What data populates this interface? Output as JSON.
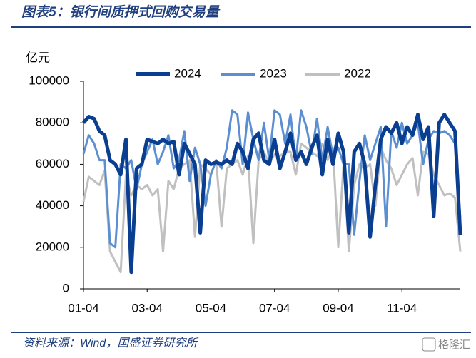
{
  "chart_data": {
    "type": "line",
    "title": "图表5：银行间质押式回购交易量",
    "y_label": "亿元",
    "source": "资料来源：Wind，国盛证券研究所",
    "watermark": "格隆汇",
    "categories": [
      "01-04",
      null,
      null,
      null,
      null,
      null,
      null,
      null,
      null,
      null,
      null,
      null,
      "03-04",
      null,
      null,
      null,
      null,
      null,
      null,
      null,
      null,
      null,
      null,
      null,
      "05-04",
      null,
      null,
      null,
      null,
      null,
      null,
      null,
      null,
      null,
      null,
      null,
      "07-04",
      null,
      null,
      null,
      null,
      null,
      null,
      null,
      null,
      null,
      null,
      null,
      "09-04",
      null,
      null,
      null,
      null,
      null,
      null,
      null,
      null,
      null,
      null,
      null,
      "11-04",
      null,
      null,
      null,
      null,
      null,
      null,
      null,
      null,
      null,
      null,
      null
    ],
    "ylim": [
      0,
      100000
    ],
    "yticks": [
      0,
      20000,
      40000,
      60000,
      80000,
      100000
    ],
    "series": [
      {
        "name": "2024",
        "color": "#0a3e91",
        "width": 5,
        "values": [
          80000,
          83000,
          82000,
          76000,
          74000,
          62000,
          60000,
          55000,
          72000,
          8000,
          58000,
          60000,
          72000,
          71000,
          70000,
          72000,
          70000,
          71000,
          55000,
          70000,
          65000,
          60000,
          27000,
          62000,
          60000,
          61000,
          60000,
          62000,
          60000,
          70000,
          66000,
          58000,
          72000,
          75000,
          62000,
          60000,
          72000,
          58000,
          66000,
          75000,
          62000,
          66000,
          60000,
          68000,
          74000,
          55000,
          72000,
          60000,
          75000,
          66000,
          27000,
          66000,
          70000,
          60000,
          25000,
          50000,
          72000,
          78000,
          75000,
          80000,
          70000,
          78000,
          74000,
          84000,
          72000,
          78000,
          35000,
          80000,
          84000,
          80000,
          76000,
          26000
        ]
      },
      {
        "name": "2023",
        "color": "#5b8fd1",
        "width": 3,
        "values": [
          65000,
          74000,
          70000,
          62000,
          62000,
          22000,
          20000,
          60000,
          58000,
          62000,
          48000,
          60000,
          66000,
          72000,
          60000,
          66000,
          74000,
          58000,
          62000,
          76000,
          52000,
          68000,
          60000,
          40000,
          55000,
          62000,
          58000,
          68000,
          86000,
          84000,
          60000,
          85000,
          72000,
          62000,
          80000,
          62000,
          86000,
          84000,
          70000,
          84000,
          62000,
          86000,
          78000,
          65000,
          82000,
          62000,
          78000,
          64000,
          68000,
          60000,
          60000,
          26000,
          52000,
          74000,
          62000,
          70000,
          78000,
          30000,
          76000,
          68000,
          80000,
          70000,
          74000,
          80000,
          60000,
          72000,
          76000,
          75000,
          76000,
          74000,
          70000,
          34000
        ]
      },
      {
        "name": "2022",
        "color": "#c0c0c0",
        "width": 3,
        "values": [
          42000,
          54000,
          52000,
          50000,
          57000,
          18000,
          13000,
          8000,
          55000,
          45000,
          50000,
          48000,
          50000,
          45000,
          48000,
          18000,
          52000,
          48000,
          58000,
          60000,
          62000,
          25000,
          60000,
          58000,
          55000,
          62000,
          30000,
          58000,
          60000,
          62000,
          55000,
          64000,
          22000,
          62000,
          66000,
          60000,
          65000,
          64000,
          66000,
          66000,
          55000,
          70000,
          68000,
          66000,
          64000,
          70000,
          62000,
          68000,
          20000,
          60000,
          18000,
          50000,
          60000,
          58000,
          60000,
          40000,
          68000,
          62000,
          58000,
          50000,
          55000,
          60000,
          63000,
          45000,
          66000,
          65000,
          55000,
          50000,
          45000,
          46000,
          44000,
          18000
        ]
      }
    ]
  }
}
